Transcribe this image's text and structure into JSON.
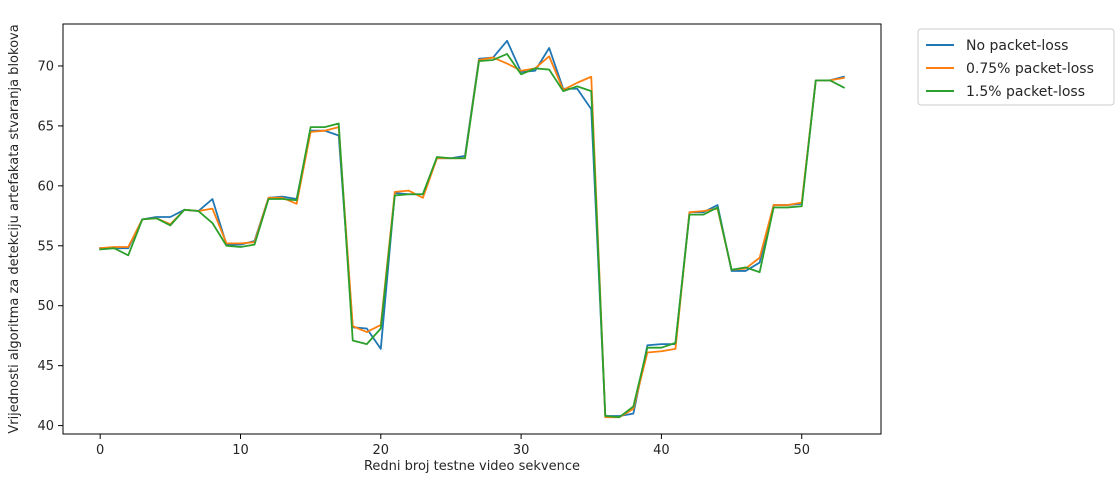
{
  "chart_data": {
    "type": "line",
    "title": "",
    "xlabel": "Redni broj testne video sekvence",
    "ylabel": "Vrijednosti algoritma za detekciju artefakata stvaranja blokova",
    "xlim": [
      -2.65,
      55.65
    ],
    "ylim": [
      39.3,
      73.5
    ],
    "xticks": [
      0,
      10,
      20,
      30,
      40,
      50
    ],
    "yticks": [
      40,
      45,
      50,
      55,
      60,
      65,
      70
    ],
    "grid": false,
    "legend_position": "outside-top-right",
    "x": [
      0,
      1,
      2,
      3,
      4,
      5,
      6,
      7,
      8,
      9,
      10,
      11,
      12,
      13,
      14,
      15,
      16,
      17,
      18,
      19,
      20,
      21,
      22,
      23,
      24,
      25,
      26,
      27,
      28,
      29,
      30,
      31,
      32,
      33,
      34,
      35,
      36,
      37,
      38,
      39,
      40,
      41,
      42,
      43,
      44,
      45,
      46,
      47,
      48,
      49,
      50,
      51,
      52,
      53
    ],
    "series": [
      {
        "name": "No packet-loss",
        "color": "#1f77b4",
        "values": [
          54.8,
          54.8,
          54.8,
          57.2,
          57.4,
          57.4,
          58.0,
          57.9,
          58.9,
          55.1,
          55.1,
          55.4,
          59.0,
          59.1,
          58.9,
          64.6,
          64.6,
          64.2,
          48.2,
          48.1,
          46.4,
          59.4,
          59.3,
          59.3,
          62.3,
          62.3,
          62.5,
          70.6,
          70.7,
          72.1,
          69.5,
          69.6,
          71.5,
          68.1,
          68.1,
          66.4,
          40.8,
          40.8,
          41.0,
          46.7,
          46.8,
          46.8,
          57.8,
          57.8,
          58.4,
          52.9,
          52.9,
          53.6,
          58.4,
          58.4,
          58.5,
          68.8,
          68.8,
          69.1
        ]
      },
      {
        "name": "0.75% packet-loss",
        "color": "#ff7f0e",
        "values": [
          54.8,
          54.9,
          54.9,
          57.2,
          57.3,
          56.8,
          58.0,
          57.9,
          58.1,
          55.2,
          55.2,
          55.3,
          59.0,
          59.0,
          58.5,
          64.5,
          64.6,
          64.9,
          48.3,
          47.8,
          48.4,
          59.5,
          59.6,
          59.0,
          62.3,
          62.3,
          62.3,
          70.5,
          70.7,
          70.2,
          69.6,
          69.8,
          70.8,
          68.0,
          68.6,
          69.1,
          40.7,
          40.7,
          41.4,
          46.1,
          46.2,
          46.4,
          57.8,
          57.9,
          58.1,
          53.0,
          53.1,
          54.0,
          58.4,
          58.4,
          58.6,
          68.8,
          68.8,
          69.0
        ]
      },
      {
        "name": "1.5% packet-loss",
        "color": "#2ca02c",
        "values": [
          54.7,
          54.8,
          54.2,
          57.2,
          57.3,
          56.7,
          58.0,
          57.9,
          56.9,
          55.0,
          54.9,
          55.1,
          58.9,
          58.9,
          58.8,
          64.9,
          64.9,
          65.2,
          47.1,
          46.8,
          48.1,
          59.2,
          59.3,
          59.3,
          62.4,
          62.3,
          62.3,
          70.4,
          70.5,
          71.0,
          69.3,
          69.8,
          69.7,
          67.9,
          68.3,
          67.9,
          40.8,
          40.7,
          41.6,
          46.5,
          46.5,
          46.9,
          57.6,
          57.6,
          58.2,
          53.0,
          53.2,
          52.8,
          58.2,
          58.2,
          58.3,
          68.8,
          68.8,
          68.2
        ]
      }
    ]
  }
}
